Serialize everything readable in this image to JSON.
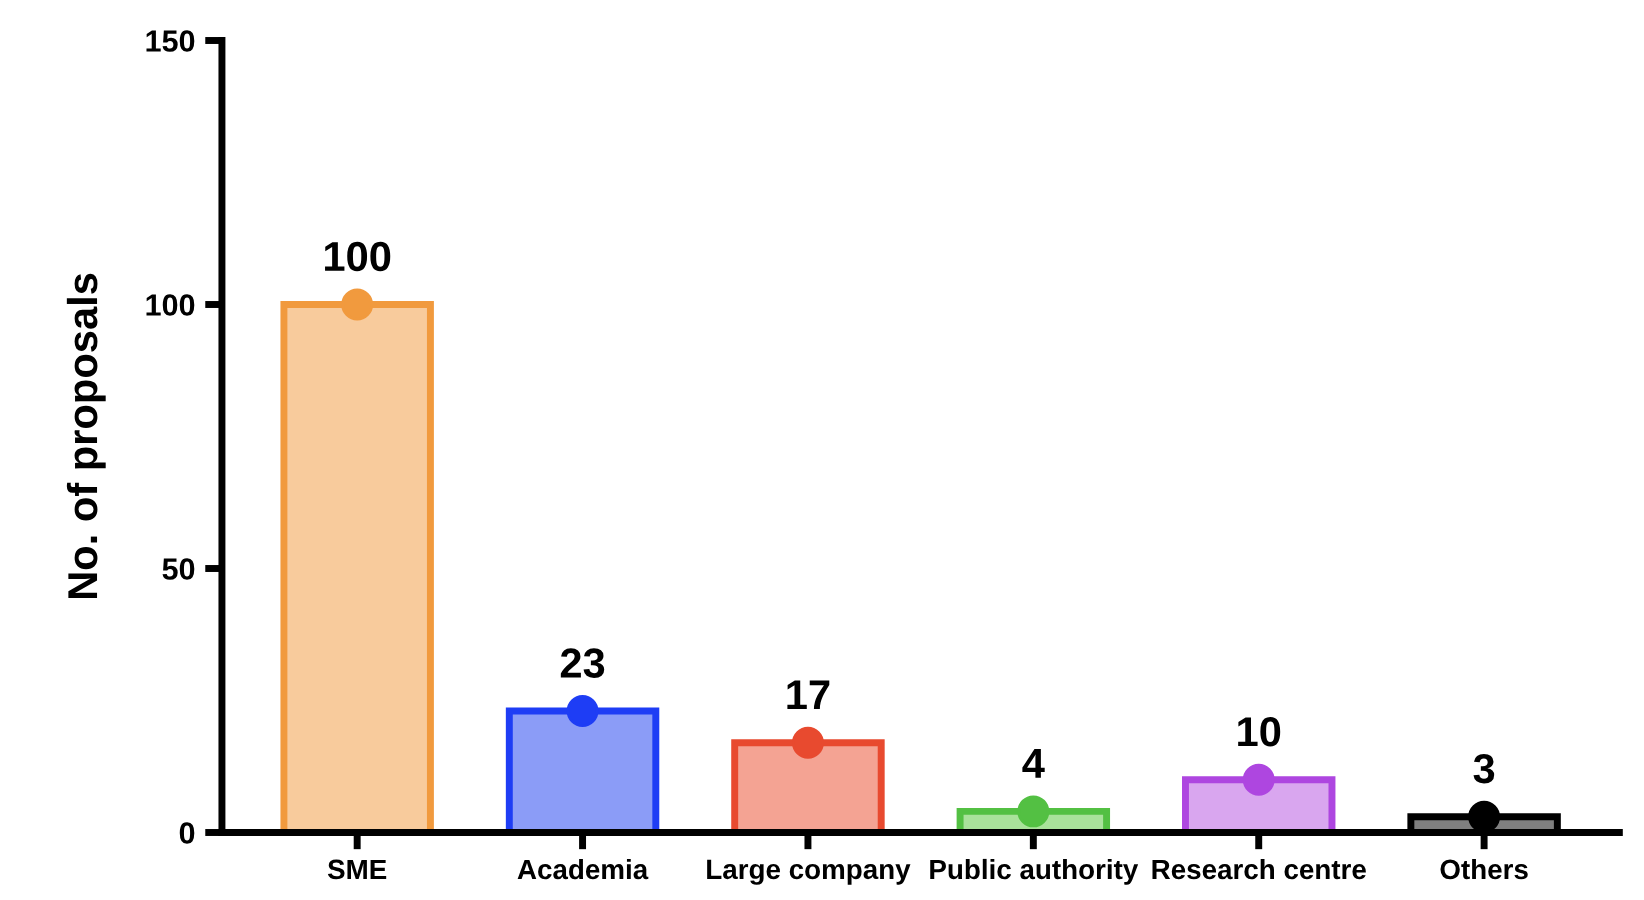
{
  "chart_data": {
    "type": "bar",
    "ylabel": "No. of proposals",
    "categories": [
      "SME",
      "Academia",
      "Large company",
      "Public authority",
      "Research centre",
      "Others"
    ],
    "series": [
      {
        "colors": [
          "#f8cb9c",
          "#8b9cf7",
          "#f4a393",
          "#a9e29b",
          "#d9a6ef",
          "#7f7f7f"
        ],
        "values": [
          100,
          23,
          17,
          4,
          10,
          3
        ],
        "value_labels": [
          "100",
          "23",
          "17",
          "4",
          "10",
          "3"
        ]
      },
      {
        "type": "scatter",
        "x": [
          "SME",
          "Academia",
          "Large company",
          "Public authority",
          "Research centre",
          "Others"
        ],
        "colors": [
          "#f19a3e",
          "#1e3df5",
          "#e84a2f",
          "#53c043",
          "#ae46e0",
          "#000000"
        ],
        "values": [
          100,
          23,
          17,
          4,
          10,
          3
        ]
      }
    ],
    "ylim": [
      0,
      150
    ],
    "yticks": [
      0,
      50,
      100,
      150
    ],
    "grid": false,
    "legend": false,
    "marker": "circle"
  }
}
